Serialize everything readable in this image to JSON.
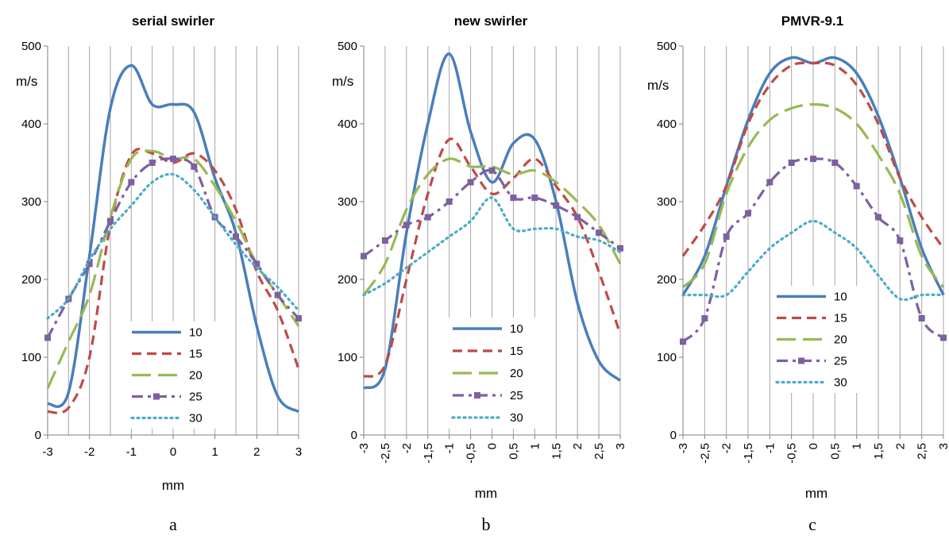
{
  "chart_data": [
    {
      "type": "line",
      "title": "serial swirler",
      "ylabel": "m/s",
      "xlabel": "mm",
      "caption": "a",
      "ylim": [
        0,
        500
      ],
      "xlim": [
        -3,
        3
      ],
      "yticks": [
        0,
        100,
        200,
        300,
        400,
        500
      ],
      "xticks": [
        "-3",
        "-2",
        "-1",
        "0",
        "1",
        "2",
        "3"
      ],
      "xtick_values": [
        -3,
        -2,
        -1,
        0,
        1,
        2,
        3
      ],
      "xtick_rotated": false,
      "grid": "vertical",
      "legend_position": "bottom-center",
      "series": [
        {
          "name": "10",
          "color": "#4a7ebb",
          "style": "solid",
          "x": [
            -3,
            -2.5,
            -2,
            -1.5,
            -1,
            -0.5,
            0,
            0.5,
            1,
            1.5,
            2,
            2.5,
            3
          ],
          "y": [
            40,
            55,
            230,
            420,
            475,
            425,
            425,
            415,
            330,
            260,
            140,
            50,
            30
          ]
        },
        {
          "name": "15",
          "color": "#be4b48",
          "style": "dashed",
          "x": [
            -3,
            -2.5,
            -2,
            -1.5,
            -1,
            -0.5,
            0,
            0.5,
            1,
            1.5,
            2,
            2.5,
            3
          ],
          "y": [
            30,
            35,
            100,
            270,
            360,
            362,
            350,
            362,
            340,
            290,
            210,
            160,
            85
          ]
        },
        {
          "name": "20",
          "color": "#98b954",
          "style": "longdash",
          "x": [
            -3,
            -2.5,
            -2,
            -1.5,
            -1,
            -0.5,
            0,
            0.5,
            1,
            1.5,
            2,
            2.5,
            3
          ],
          "y": [
            60,
            120,
            180,
            280,
            355,
            365,
            355,
            355,
            320,
            275,
            220,
            180,
            140
          ]
        },
        {
          "name": "25",
          "color": "#7d60a0",
          "style": "dashdot-square",
          "x": [
            -3,
            -2.5,
            -2,
            -1.5,
            -1,
            -0.5,
            0,
            0.5,
            1,
            1.5,
            2,
            2.5,
            3
          ],
          "y": [
            125,
            175,
            220,
            275,
            325,
            350,
            355,
            345,
            280,
            255,
            220,
            180,
            150
          ]
        },
        {
          "name": "30",
          "color": "#4bacc6",
          "style": "dotted",
          "x": [
            -3,
            -2.5,
            -2,
            -1.5,
            -1,
            -0.5,
            0,
            0.5,
            1,
            1.5,
            2,
            2.5,
            3
          ],
          "y": [
            150,
            175,
            225,
            265,
            295,
            325,
            335,
            315,
            280,
            245,
            215,
            190,
            160
          ]
        }
      ]
    },
    {
      "type": "line",
      "title": "new swirler",
      "ylabel": "m/s",
      "xlabel": "mm",
      "caption": "b",
      "ylim": [
        0,
        500
      ],
      "xlim": [
        -3,
        3
      ],
      "yticks": [
        0,
        100,
        200,
        300,
        400,
        500
      ],
      "xticks": [
        "-3",
        "-2,5",
        "-2",
        "-1,5",
        "-1",
        "-0,5",
        "0",
        "0,5",
        "1",
        "1,5",
        "2",
        "2,5",
        "3"
      ],
      "xtick_values": [
        -3,
        -2.5,
        -2,
        -1.5,
        -1,
        -0.5,
        0,
        0.5,
        1,
        1.5,
        2,
        2.5,
        3
      ],
      "xtick_rotated": true,
      "grid": "vertical",
      "legend_position": "bottom-center",
      "series": [
        {
          "name": "10",
          "color": "#4a7ebb",
          "style": "solid",
          "x": [
            -3,
            -2.5,
            -2,
            -1.5,
            -1,
            -0.5,
            0,
            0.5,
            1,
            1.5,
            2,
            2.5,
            3
          ],
          "y": [
            60,
            85,
            260,
            400,
            490,
            390,
            325,
            375,
            380,
            300,
            170,
            95,
            70
          ]
        },
        {
          "name": "15",
          "color": "#be4b48",
          "style": "dashed",
          "x": [
            -3,
            -2.5,
            -2,
            -1.5,
            -1,
            -0.5,
            0,
            0.5,
            1,
            1.5,
            2,
            2.5,
            3
          ],
          "y": [
            75,
            90,
            200,
            310,
            380,
            345,
            310,
            330,
            355,
            320,
            280,
            210,
            130
          ]
        },
        {
          "name": "20",
          "color": "#98b954",
          "style": "longdash",
          "x": [
            -3,
            -2.5,
            -2,
            -1.5,
            -1,
            -0.5,
            0,
            0.5,
            1,
            1.5,
            2,
            2.5,
            3
          ],
          "y": [
            180,
            220,
            290,
            335,
            355,
            345,
            345,
            335,
            340,
            325,
            300,
            270,
            220
          ]
        },
        {
          "name": "25",
          "color": "#7d60a0",
          "style": "dashdot-square",
          "x": [
            -3,
            -2.5,
            -2,
            -1.5,
            -1,
            -0.5,
            0,
            0.5,
            1,
            1.5,
            2,
            2.5,
            3
          ],
          "y": [
            230,
            250,
            270,
            280,
            300,
            325,
            340,
            305,
            305,
            295,
            280,
            260,
            240
          ]
        },
        {
          "name": "30",
          "color": "#4bacc6",
          "style": "dotted",
          "x": [
            -3,
            -2.5,
            -2,
            -1.5,
            -1,
            -0.5,
            0,
            0.5,
            1,
            1.5,
            2,
            2.5,
            3
          ],
          "y": [
            180,
            195,
            215,
            235,
            255,
            275,
            305,
            265,
            265,
            265,
            255,
            250,
            235
          ]
        }
      ]
    },
    {
      "type": "line",
      "title": "PMVR-9.1",
      "ylabel": "m/s",
      "xlabel": "mm",
      "caption": "c",
      "ylim": [
        0,
        500
      ],
      "xlim": [
        -3,
        3
      ],
      "yticks": [
        0,
        100,
        200,
        300,
        400,
        500
      ],
      "xticks": [
        "-3",
        "-2,5",
        "-2",
        "-1,5",
        "-1",
        "-0,5",
        "0",
        "0,5",
        "1",
        "1,5",
        "2",
        "2,5",
        "3"
      ],
      "xtick_values": [
        -3,
        -2.5,
        -2,
        -1.5,
        -1,
        -0.5,
        0,
        0.5,
        1,
        1.5,
        2,
        2.5,
        3
      ],
      "xtick_rotated": true,
      "grid": "vertical",
      "legend_position": "bottom-center",
      "series": [
        {
          "name": "10",
          "color": "#4a7ebb",
          "style": "solid",
          "x": [
            -3,
            -2.5,
            -2,
            -1.5,
            -1,
            -0.5,
            0,
            0.5,
            1,
            1.5,
            2,
            2.5,
            3
          ],
          "y": [
            180,
            230,
            320,
            405,
            465,
            485,
            478,
            485,
            465,
            410,
            330,
            240,
            180
          ]
        },
        {
          "name": "15",
          "color": "#be4b48",
          "style": "dashed",
          "x": [
            -3,
            -2.5,
            -2,
            -1.5,
            -1,
            -0.5,
            0,
            0.5,
            1,
            1.5,
            2,
            2.5,
            3
          ],
          "y": [
            230,
            270,
            320,
            400,
            450,
            475,
            478,
            475,
            450,
            400,
            330,
            280,
            240
          ]
        },
        {
          "name": "20",
          "color": "#98b954",
          "style": "longdash",
          "x": [
            -3,
            -2.5,
            -2,
            -1.5,
            -1,
            -0.5,
            0,
            0.5,
            1,
            1.5,
            2,
            2.5,
            3
          ],
          "y": [
            190,
            220,
            310,
            370,
            405,
            420,
            425,
            420,
            400,
            360,
            310,
            230,
            190
          ]
        },
        {
          "name": "25",
          "color": "#7d60a0",
          "style": "dashdot-square",
          "x": [
            -3,
            -2.5,
            -2,
            -1.5,
            -1,
            -0.5,
            0,
            0.5,
            1,
            1.5,
            2,
            2.5,
            3
          ],
          "y": [
            120,
            150,
            255,
            285,
            325,
            350,
            355,
            350,
            320,
            280,
            250,
            150,
            125
          ]
        },
        {
          "name": "30",
          "color": "#4bacc6",
          "style": "dotted",
          "x": [
            -3,
            -2.5,
            -2,
            -1.5,
            -1,
            -0.5,
            0,
            0.5,
            1,
            1.5,
            2,
            2.5,
            3
          ],
          "y": [
            180,
            180,
            180,
            210,
            240,
            260,
            275,
            260,
            240,
            205,
            175,
            180,
            180
          ]
        }
      ]
    }
  ]
}
